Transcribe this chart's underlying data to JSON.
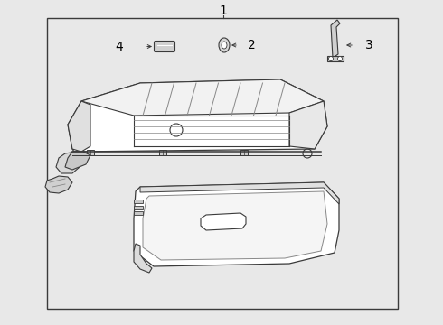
{
  "background_color": "#e8e8e8",
  "box_facecolor": "#e8e8e8",
  "line_color": "#3a3a3a",
  "light_line": "#888888",
  "lighter_fill": "#f0f0f0",
  "label_1": "1",
  "label_2": "2",
  "label_3": "3",
  "label_4": "4",
  "label_fontsize": 10,
  "figsize": [
    4.9,
    3.6
  ],
  "dpi": 100
}
